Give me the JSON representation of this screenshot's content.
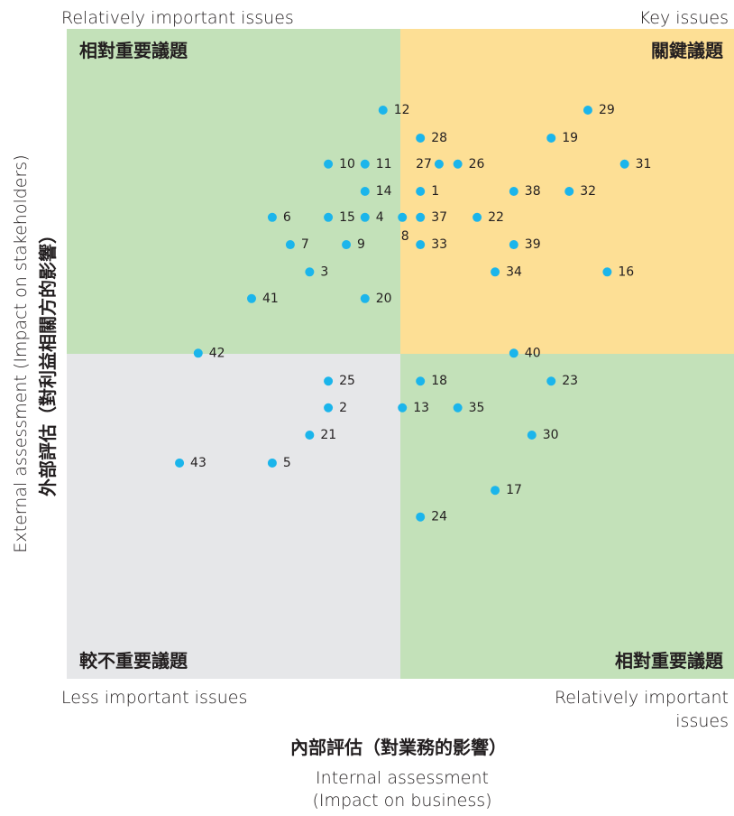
{
  "chart_data": {
    "type": "scatter",
    "corner_labels": {
      "top_left": [
        "Relatively important issues"
      ],
      "top_right": [
        "Key issues"
      ],
      "bottom_left": [
        "Less important issues"
      ],
      "bottom_right": [
        "Relatively important",
        "issues"
      ]
    },
    "quadrants": {
      "top_left": {
        "label": "相對重要議題",
        "color": "#c3e1b9"
      },
      "top_right": {
        "label": "關鍵議題",
        "color": "#fddf95"
      },
      "bottom_left": {
        "label": "較不重要議題",
        "color": "#e6e7e9"
      },
      "bottom_right": {
        "label": "相對重要議題",
        "color": "#c3e1b9"
      }
    },
    "y_label": [
      "External assessment (Impact on stakeholders)",
      "外部評估（對利益相關方的影響）"
    ],
    "x_label": [
      "內部評估（對業務的影響）",
      "Internal assessment",
      "(Impact on business)"
    ],
    "color": "#1bb5eb",
    "xlim": [
      0,
      100
    ],
    "ylim": [
      0,
      100
    ],
    "labels": [
      "12",
      "28",
      "29",
      "19",
      "10",
      "11",
      "27",
      "26",
      "31",
      "14",
      "1",
      "38",
      "32",
      "6",
      "15",
      "4",
      "8",
      "37",
      "22",
      "7",
      "9",
      "33",
      "39",
      "3",
      "34",
      "16",
      "41",
      "20",
      "42",
      "40",
      "25",
      "18",
      "23",
      "2",
      "13",
      "35",
      "21",
      "30",
      "43",
      "5",
      "17",
      "24"
    ],
    "x": [
      47.4,
      53.0,
      78.1,
      72.6,
      39.2,
      44.7,
      55.8,
      58.6,
      83.6,
      44.7,
      53.0,
      67.0,
      75.3,
      30.8,
      39.2,
      44.7,
      50.3,
      53.0,
      61.5,
      33.5,
      41.9,
      53.0,
      67.0,
      36.4,
      64.2,
      81.0,
      27.7,
      44.7,
      19.7,
      67.0,
      39.2,
      53.0,
      72.6,
      39.2,
      50.3,
      58.6,
      36.4,
      69.7,
      16.9,
      30.8,
      64.2,
      53.0
    ],
    "y": [
      87.5,
      83.2,
      87.5,
      83.2,
      79.2,
      79.2,
      79.2,
      79.2,
      79.2,
      75.0,
      75.0,
      75.0,
      75.0,
      71.0,
      71.0,
      71.0,
      71.0,
      71.0,
      71.0,
      66.8,
      66.8,
      66.8,
      66.8,
      62.6,
      62.6,
      62.6,
      58.5,
      58.5,
      50.1,
      50.1,
      45.8,
      45.8,
      45.8,
      41.7,
      41.7,
      41.7,
      37.5,
      37.5,
      33.2,
      33.2,
      29.0,
      24.9
    ]
  }
}
